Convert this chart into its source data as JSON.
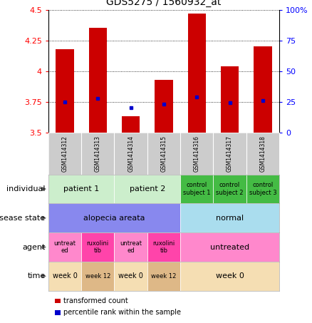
{
  "title": "GDS5275 / 1560932_at",
  "samples": [
    "GSM1414312",
    "GSM1414313",
    "GSM1414314",
    "GSM1414315",
    "GSM1414316",
    "GSM1414317",
    "GSM1414318"
  ],
  "bar_values": [
    4.18,
    4.35,
    3.63,
    3.93,
    4.47,
    4.04,
    4.2
  ],
  "blue_dot_values": [
    3.75,
    3.78,
    3.7,
    3.73,
    3.79,
    3.74,
    3.76
  ],
  "bar_bottom": 3.5,
  "ylim_left": [
    3.5,
    4.5
  ],
  "ylim_right": [
    0,
    100
  ],
  "yticks_left": [
    3.5,
    3.75,
    4.0,
    4.25,
    4.5
  ],
  "ytick_labels_left": [
    "3.5",
    "3.75",
    "4",
    "4.25",
    "4.5"
  ],
  "yticks_right": [
    0,
    25,
    50,
    75,
    100
  ],
  "ytick_labels_right": [
    "0",
    "25",
    "50",
    "75",
    "100%"
  ],
  "bar_color": "#cc0000",
  "dot_color": "#0000cc",
  "annotation_rows": {
    "individual": {
      "label": "individual",
      "groups": [
        {
          "text": "patient 1",
          "cols": [
            0,
            1
          ],
          "color": "#cceecc",
          "fontsize": 8
        },
        {
          "text": "patient 2",
          "cols": [
            2,
            3
          ],
          "color": "#cceecc",
          "fontsize": 8
        },
        {
          "text": "control\nsubject 1",
          "cols": [
            4
          ],
          "color": "#44bb44",
          "fontsize": 6
        },
        {
          "text": "control\nsubject 2",
          "cols": [
            5
          ],
          "color": "#44bb44",
          "fontsize": 6
        },
        {
          "text": "control\nsubject 3",
          "cols": [
            6
          ],
          "color": "#44bb44",
          "fontsize": 6
        }
      ]
    },
    "disease_state": {
      "label": "disease state",
      "groups": [
        {
          "text": "alopecia areata",
          "cols": [
            0,
            1,
            2,
            3
          ],
          "color": "#8888ee",
          "fontsize": 8
        },
        {
          "text": "normal",
          "cols": [
            4,
            5,
            6
          ],
          "color": "#aaddee",
          "fontsize": 8
        }
      ]
    },
    "agent": {
      "label": "agent",
      "groups": [
        {
          "text": "untreat\ned",
          "cols": [
            0
          ],
          "color": "#ff88cc",
          "fontsize": 6
        },
        {
          "text": "ruxolini\ntib",
          "cols": [
            1
          ],
          "color": "#ff44aa",
          "fontsize": 6
        },
        {
          "text": "untreat\ned",
          "cols": [
            2
          ],
          "color": "#ff88cc",
          "fontsize": 6
        },
        {
          "text": "ruxolini\ntib",
          "cols": [
            3
          ],
          "color": "#ff44aa",
          "fontsize": 6
        },
        {
          "text": "untreated",
          "cols": [
            4,
            5,
            6
          ],
          "color": "#ff88cc",
          "fontsize": 8
        }
      ]
    },
    "time": {
      "label": "time",
      "groups": [
        {
          "text": "week 0",
          "cols": [
            0
          ],
          "color": "#f5deb3",
          "fontsize": 7
        },
        {
          "text": "week 12",
          "cols": [
            1
          ],
          "color": "#deb887",
          "fontsize": 6
        },
        {
          "text": "week 0",
          "cols": [
            2
          ],
          "color": "#f5deb3",
          "fontsize": 7
        },
        {
          "text": "week 12",
          "cols": [
            3
          ],
          "color": "#deb887",
          "fontsize": 6
        },
        {
          "text": "week 0",
          "cols": [
            4,
            5,
            6
          ],
          "color": "#f5deb3",
          "fontsize": 8
        }
      ]
    }
  },
  "legend": [
    {
      "color": "#cc0000",
      "label": "transformed count"
    },
    {
      "color": "#0000cc",
      "label": "percentile rank within the sample"
    }
  ],
  "sample_bg_color": "#cccccc",
  "row_label_fontsize": 8,
  "arrow_color": "#888888"
}
